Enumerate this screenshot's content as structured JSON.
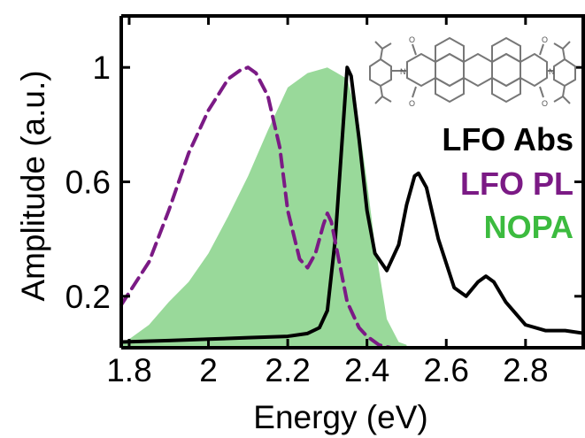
{
  "chart_data": {
    "type": "line",
    "xlabel": "Energy (eV)",
    "ylabel": "Amplitude (a.u.)",
    "xlim": [
      1.78,
      2.95
    ],
    "ylim": [
      0.02,
      1.18
    ],
    "xticks": [
      1.8,
      2.0,
      2.2,
      2.4,
      2.6,
      2.8
    ],
    "xtick_labels": [
      "1.8",
      "2",
      "2.2",
      "2.4",
      "2.6",
      "2.8"
    ],
    "yticks": [
      0.2,
      0.6,
      1.0
    ],
    "ytick_labels": [
      "0.2",
      "0.6",
      "1"
    ],
    "legend_placement": "right",
    "series": [
      {
        "name": "LFO Abs",
        "style": "solid",
        "color": "#000000",
        "x": [
          1.78,
          1.9,
          2.0,
          2.1,
          2.2,
          2.25,
          2.28,
          2.3,
          2.32,
          2.34,
          2.35,
          2.36,
          2.38,
          2.4,
          2.42,
          2.45,
          2.48,
          2.5,
          2.52,
          2.53,
          2.55,
          2.58,
          2.62,
          2.65,
          2.68,
          2.7,
          2.72,
          2.75,
          2.8,
          2.85,
          2.9,
          2.95
        ],
        "y": [
          0.04,
          0.045,
          0.05,
          0.055,
          0.06,
          0.07,
          0.09,
          0.15,
          0.4,
          0.8,
          1.0,
          0.97,
          0.75,
          0.5,
          0.35,
          0.29,
          0.38,
          0.52,
          0.62,
          0.63,
          0.58,
          0.4,
          0.23,
          0.2,
          0.25,
          0.27,
          0.25,
          0.18,
          0.1,
          0.08,
          0.08,
          0.07
        ]
      },
      {
        "name": "LFO PL",
        "style": "dashed",
        "color": "#7b1a85",
        "x": [
          1.78,
          1.85,
          1.9,
          1.95,
          2.0,
          2.05,
          2.08,
          2.1,
          2.12,
          2.15,
          2.18,
          2.2,
          2.23,
          2.25,
          2.27,
          2.29,
          2.3,
          2.31,
          2.33,
          2.35,
          2.38,
          2.4,
          2.43,
          2.46,
          2.5,
          2.55,
          2.6
        ],
        "y": [
          0.17,
          0.32,
          0.5,
          0.7,
          0.85,
          0.96,
          0.99,
          1.0,
          0.98,
          0.9,
          0.72,
          0.5,
          0.33,
          0.3,
          0.35,
          0.45,
          0.49,
          0.46,
          0.32,
          0.18,
          0.09,
          0.06,
          0.03,
          0.02,
          0.02,
          0.02,
          0.02
        ]
      },
      {
        "name": "NOPA",
        "style": "filled",
        "color": "#99d99a",
        "x": [
          1.78,
          1.8,
          1.85,
          1.9,
          1.95,
          2.0,
          2.05,
          2.1,
          2.15,
          2.2,
          2.25,
          2.3,
          2.35,
          2.38,
          2.4,
          2.42,
          2.45,
          2.48,
          2.5
        ],
        "y": [
          0.04,
          0.05,
          0.1,
          0.18,
          0.25,
          0.35,
          0.48,
          0.62,
          0.78,
          0.93,
          0.98,
          1.0,
          0.96,
          0.8,
          0.6,
          0.38,
          0.12,
          0.04,
          0.03
        ]
      }
    ]
  }
}
